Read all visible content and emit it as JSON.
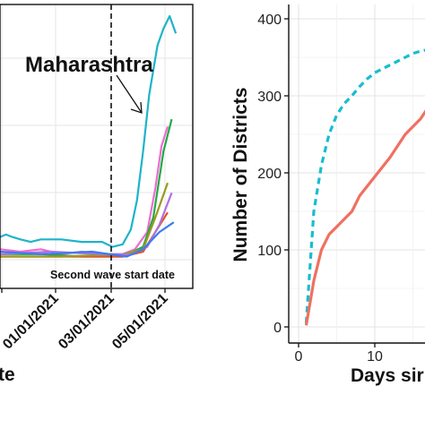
{
  "chart_data": [
    {
      "type": "line",
      "x_tick_labels": [
        "01/01/2021",
        "03/01/2021",
        "05/01/2021"
      ],
      "xlabel_partial": "te",
      "annotation": "Maharashtra",
      "vline_label": "Second wave start date",
      "grid": true,
      "series": [
        {
          "name": "Maharashtra",
          "color": "#1fb3c9",
          "values": [
            [
              0.0,
              0.1
            ],
            [
              0.03,
              0.11
            ],
            [
              0.06,
              0.1
            ],
            [
              0.1,
              0.09
            ],
            [
              0.15,
              0.08
            ],
            [
              0.2,
              0.09
            ],
            [
              0.3,
              0.09
            ],
            [
              0.4,
              0.08
            ],
            [
              0.5,
              0.08
            ],
            [
              0.55,
              0.06
            ],
            [
              0.6,
              0.07
            ],
            [
              0.64,
              0.13
            ],
            [
              0.67,
              0.25
            ],
            [
              0.7,
              0.45
            ],
            [
              0.73,
              0.68
            ],
            [
              0.77,
              0.88
            ],
            [
              0.8,
              0.95
            ],
            [
              0.83,
              1.0
            ],
            [
              0.86,
              0.93
            ]
          ]
        },
        {
          "name": "",
          "color": "#f06bd0",
          "values": [
            [
              0.0,
              0.05
            ],
            [
              0.1,
              0.04
            ],
            [
              0.2,
              0.05
            ],
            [
              0.3,
              0.03
            ],
            [
              0.4,
              0.04
            ],
            [
              0.5,
              0.03
            ],
            [
              0.6,
              0.03
            ],
            [
              0.66,
              0.05
            ],
            [
              0.72,
              0.12
            ],
            [
              0.76,
              0.3
            ],
            [
              0.79,
              0.47
            ],
            [
              0.82,
              0.55
            ]
          ]
        },
        {
          "name": "",
          "color": "#22aa44",
          "values": [
            [
              0.0,
              0.03
            ],
            [
              0.2,
              0.03
            ],
            [
              0.4,
              0.02
            ],
            [
              0.6,
              0.02
            ],
            [
              0.7,
              0.06
            ],
            [
              0.75,
              0.18
            ],
            [
              0.8,
              0.45
            ],
            [
              0.84,
              0.58
            ]
          ]
        },
        {
          "name": "",
          "color": "#e2542a",
          "values": [
            [
              0.0,
              0.02
            ],
            [
              0.3,
              0.02
            ],
            [
              0.6,
              0.02
            ],
            [
              0.7,
              0.04
            ],
            [
              0.76,
              0.12
            ],
            [
              0.82,
              0.2
            ]
          ]
        },
        {
          "name": "",
          "color": "#9a9a20",
          "values": [
            [
              0.0,
              0.02
            ],
            [
              0.3,
              0.02
            ],
            [
              0.6,
              0.03
            ],
            [
              0.7,
              0.05
            ],
            [
              0.76,
              0.18
            ],
            [
              0.82,
              0.32
            ]
          ]
        },
        {
          "name": "",
          "color": "#b071e0",
          "values": [
            [
              0.0,
              0.03
            ],
            [
              0.25,
              0.04
            ],
            [
              0.5,
              0.03
            ],
            [
              0.65,
              0.03
            ],
            [
              0.72,
              0.06
            ],
            [
              0.78,
              0.15
            ],
            [
              0.84,
              0.28
            ]
          ]
        },
        {
          "name": "",
          "color": "#3a7df0",
          "values": [
            [
              0.0,
              0.04
            ],
            [
              0.2,
              0.03
            ],
            [
              0.45,
              0.04
            ],
            [
              0.62,
              0.02
            ],
            [
              0.7,
              0.05
            ],
            [
              0.78,
              0.12
            ],
            [
              0.85,
              0.16
            ]
          ]
        }
      ]
    },
    {
      "type": "line",
      "ylabel": "Number of Districts",
      "xlabel_partial": "Days sir",
      "ylim": [
        0,
        400
      ],
      "yticks": [
        0,
        100,
        200,
        300,
        400
      ],
      "xlim": [
        -1,
        21
      ],
      "xticks": [
        0,
        10
      ],
      "grid": true,
      "series": [
        {
          "name": "",
          "style": "dashed",
          "color": "#17becf",
          "values": [
            [
              1,
              5
            ],
            [
              2,
              150
            ],
            [
              3,
              210
            ],
            [
              4,
              250
            ],
            [
              5,
              275
            ],
            [
              6,
              290
            ],
            [
              7,
              300
            ],
            [
              8,
              312
            ],
            [
              9,
              322
            ],
            [
              10,
              330
            ],
            [
              11,
              335
            ],
            [
              12,
              340
            ],
            [
              13,
              345
            ],
            [
              14,
              350
            ],
            [
              15,
              355
            ],
            [
              16,
              358
            ],
            [
              17,
              360
            ],
            [
              18,
              362
            ],
            [
              19,
              368
            ],
            [
              20,
              375
            ]
          ]
        },
        {
          "name": "",
          "style": "solid",
          "color": "#f07060",
          "values": [
            [
              1,
              2
            ],
            [
              2,
              60
            ],
            [
              3,
              100
            ],
            [
              4,
              120
            ],
            [
              5,
              130
            ],
            [
              6,
              140
            ],
            [
              7,
              150
            ],
            [
              8,
              170
            ],
            [
              10,
              195
            ],
            [
              12,
              220
            ],
            [
              14,
              250
            ],
            [
              16,
              270
            ],
            [
              17,
              285
            ],
            [
              18,
              295
            ]
          ]
        }
      ]
    }
  ]
}
